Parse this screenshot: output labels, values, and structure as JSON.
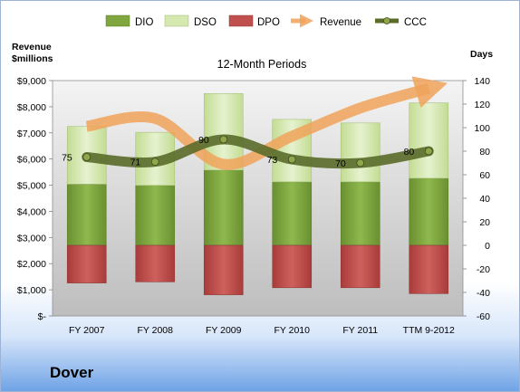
{
  "chart_data": {
    "type": "bar",
    "title": "12-Month Periods",
    "ylabel_left": "Revenue\n$millions",
    "ylabel_right": "Days",
    "categories": [
      "FY 2007",
      "FY 2008",
      "FY 2009",
      "FY 2010",
      "FY 2011",
      "TTM 9-2012"
    ],
    "left_axis": {
      "ylim": [
        0,
        9000
      ],
      "ticks": [
        0,
        1000,
        2000,
        3000,
        4000,
        5000,
        6000,
        7000,
        8000,
        9000
      ],
      "tick_labels": [
        "$-",
        "$1,000",
        "$2,000",
        "$3,000",
        "$4,000",
        "$5,000",
        "$6,000",
        "$7,000",
        "$8,000",
        "$9,000"
      ]
    },
    "right_axis": {
      "ylim": [
        -60,
        140
      ],
      "ticks": [
        -60,
        -40,
        -20,
        0,
        20,
        40,
        60,
        80,
        100,
        120,
        140
      ],
      "tick_labels": [
        "-60",
        "-40",
        "-20",
        "0",
        "20",
        "40",
        "60",
        "80",
        "100",
        "120",
        "140"
      ]
    },
    "series": [
      {
        "name": "DIO",
        "type": "stacked-bar",
        "axis": "right",
        "color": "#7fa63f",
        "values": [
          52,
          51,
          64,
          54,
          54,
          57
        ]
      },
      {
        "name": "DSO",
        "type": "stacked-bar",
        "axis": "right",
        "color": "#d5e8b0",
        "values": [
          49,
          45,
          65,
          53,
          50,
          64
        ]
      },
      {
        "name": "DPO",
        "type": "stacked-bar",
        "axis": "right",
        "color": "#c0504d",
        "values": [
          -32,
          -31,
          -42,
          -36,
          -36,
          -41
        ]
      },
      {
        "name": "Revenue",
        "type": "line",
        "axis": "left",
        "color": "#f0a35a",
        "values": [
          7250,
          7550,
          5800,
          6870,
          7950,
          8700
        ]
      },
      {
        "name": "CCC",
        "type": "line",
        "axis": "right",
        "color": "#5a6b2a",
        "values": [
          75,
          71,
          90,
          73,
          70,
          80
        ]
      }
    ],
    "data_labels": [
      "75",
      "71",
      "90",
      "73",
      "70",
      "80"
    ],
    "grid": false,
    "legend": "top"
  },
  "company": "Dover"
}
